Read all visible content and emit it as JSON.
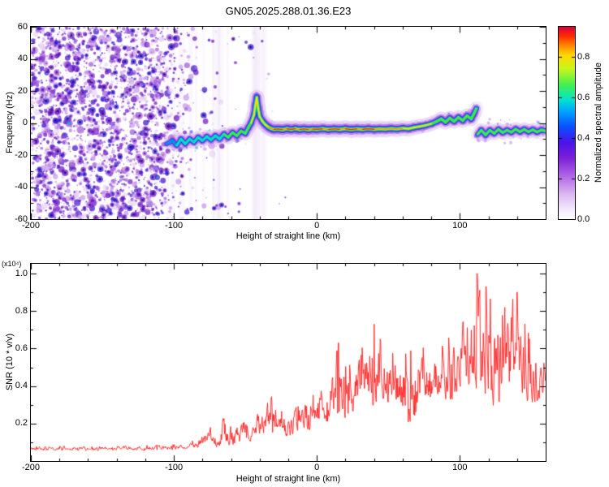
{
  "title": "GN05.2025.288.01.36.E23",
  "colors": {
    "background": "#ffffff",
    "axis": "#000000",
    "snr_line": "#ff2020"
  },
  "chart_data": [
    {
      "type": "heatmap",
      "title": "GN05.2025.288.01.36.E23",
      "xlabel": "Height of straight line (km)",
      "ylabel": "Frequency (Hz)",
      "xlim": [
        -200,
        160
      ],
      "ylim": [
        -60,
        60
      ],
      "x_ticks": [
        -200,
        -100,
        0,
        100
      ],
      "x_tick_labels": [
        "-200",
        "-100",
        "0",
        "100"
      ],
      "y_ticks": [
        -60,
        -40,
        -20,
        0,
        20,
        40,
        60
      ],
      "y_tick_labels": [
        "-60",
        "-40",
        "-20",
        "0",
        "20",
        "40",
        "60"
      ],
      "minor_tick": {
        "x": 20,
        "y": 10
      },
      "grid": false,
      "colorbar": {
        "label": "Normalized spectral amplitude",
        "ticks": [
          0,
          0.2,
          0.4,
          0.6,
          0.8
        ],
        "tick_labels": [
          "0.0",
          "0.2",
          "0.4",
          "0.6",
          "0.8"
        ],
        "max": 0.95,
        "stops": [
          [
            0.0,
            "#ffffff"
          ],
          [
            0.05,
            "#f4eafb"
          ],
          [
            0.13,
            "#dcb8f1"
          ],
          [
            0.22,
            "#b36ae6"
          ],
          [
            0.32,
            "#7b1fd8"
          ],
          [
            0.4,
            "#4a14e8"
          ],
          [
            0.48,
            "#0b50ff"
          ],
          [
            0.56,
            "#00a4ff"
          ],
          [
            0.62,
            "#00e4d0"
          ],
          [
            0.7,
            "#45f04f"
          ],
          [
            0.78,
            "#c8f520"
          ],
          [
            0.85,
            "#ffd900"
          ],
          [
            0.9,
            "#ff8c00"
          ],
          [
            0.95,
            "#ff2d00"
          ],
          [
            1.0,
            "#d80043"
          ]
        ]
      },
      "noise_region": {
        "x_range": [
          -200,
          -50
        ],
        "dense_until_km": -105,
        "description": "dense purple speckle noise at low heights, fading out toward -50 km"
      },
      "trace": {
        "x": [
          -105,
          -101,
          -98,
          -95,
          -92,
          -89,
          -86,
          -83,
          -80,
          -77,
          -74,
          -71,
          -68,
          -65,
          -62,
          -59,
          -56,
          -53,
          -50,
          -48,
          -46,
          -44,
          -43,
          -42,
          -41,
          -40,
          -38,
          -36,
          -34,
          -32,
          -30,
          -27,
          -24,
          -21,
          -18,
          -15,
          -12,
          -9,
          -6,
          -3,
          0,
          4,
          8,
          12,
          16,
          20,
          24,
          28,
          32,
          36,
          40,
          44,
          48,
          52,
          56,
          60,
          64,
          68,
          72,
          76,
          80,
          84,
          87,
          90,
          93,
          96,
          99,
          102,
          105,
          108,
          110,
          111.5,
          112.5,
          115,
          118,
          121,
          124,
          127,
          130,
          133,
          136,
          139,
          142,
          145,
          148,
          151,
          154,
          157,
          160
        ],
        "freq_hz": [
          -13,
          -11,
          -14,
          -10,
          -13,
          -10,
          -12,
          -9,
          -11,
          -8.5,
          -10.5,
          -8,
          -10,
          -7,
          -9,
          -6,
          -8,
          -5,
          -6.5,
          -3,
          0,
          5,
          11,
          16,
          9,
          4,
          1,
          -1,
          -2.5,
          -3.5,
          -4,
          -3.8,
          -4.2,
          -3.6,
          -4,
          -3.6,
          -4.1,
          -3.7,
          -4.2,
          -3.8,
          -4,
          -3.6,
          -4.1,
          -3.7,
          -4,
          -3.6,
          -4.1,
          -3.7,
          -4,
          -3.6,
          -4,
          -3.7,
          -3.9,
          -3.5,
          -3.8,
          -3.3,
          -3.6,
          -2.8,
          -2.2,
          -1.5,
          -0.5,
          1,
          2.5,
          0.5,
          3,
          1,
          3.5,
          1.5,
          4.5,
          2.5,
          6,
          9,
          -7,
          -4.5,
          -7.5,
          -4.5,
          -6.5,
          -4,
          -6,
          -4.5,
          -5.8,
          -3.8,
          -5.5,
          -4,
          -5.5,
          -4.2,
          -5.6,
          -4.4,
          -5
        ],
        "amplitude": [
          0.5,
          0.55,
          0.5,
          0.6,
          0.55,
          0.6,
          0.55,
          0.6,
          0.6,
          0.62,
          0.6,
          0.62,
          0.6,
          0.65,
          0.62,
          0.65,
          0.62,
          0.68,
          0.65,
          0.7,
          0.72,
          0.75,
          0.75,
          0.78,
          0.76,
          0.8,
          0.78,
          0.8,
          0.82,
          0.85,
          0.88,
          0.9,
          0.92,
          0.92,
          0.92,
          0.9,
          0.92,
          0.92,
          0.9,
          0.92,
          0.92,
          0.9,
          0.92,
          0.9,
          0.92,
          0.92,
          0.9,
          0.92,
          0.9,
          0.88,
          0.9,
          0.88,
          0.86,
          0.85,
          0.84,
          0.82,
          0.8,
          0.78,
          0.76,
          0.74,
          0.72,
          0.72,
          0.7,
          0.7,
          0.72,
          0.7,
          0.72,
          0.7,
          0.72,
          0.7,
          0.72,
          0.7,
          0.62,
          0.65,
          0.62,
          0.66,
          0.63,
          0.66,
          0.64,
          0.67,
          0.64,
          0.66,
          0.65,
          0.67,
          0.64,
          0.66,
          0.64,
          0.66,
          0.65
        ]
      }
    },
    {
      "type": "line",
      "series_color": "#ff2020",
      "xlabel": "Height of straight line (km)",
      "ylabel": "SNR (10 * v/v)",
      "y_scale_label": "(x10⁴)",
      "xlim": [
        -200,
        160
      ],
      "ylim": [
        0,
        1.052
      ],
      "x_ticks": [
        -200,
        -100,
        0,
        100
      ],
      "x_tick_labels": [
        "-200",
        "-100",
        "0",
        "100"
      ],
      "y_ticks": [
        0.2,
        0.4,
        0.6,
        0.8,
        1.0
      ],
      "y_tick_labels": [
        "0.2",
        "0.4",
        "0.6",
        "0.8",
        "1.0"
      ],
      "minor_tick": {
        "x": 20,
        "y": 0.1
      },
      "envelope": {
        "description": "noisy SNR curve; value fluctuates between lo and hi envelopes",
        "x": [
          -200,
          -150,
          -120,
          -100,
          -90,
          -80,
          -75,
          -70,
          -65,
          -60,
          -55,
          -50,
          -45,
          -40,
          -35,
          -30,
          -25,
          -20,
          -15,
          -10,
          -5,
          0,
          5,
          10,
          15,
          20,
          25,
          30,
          35,
          40,
          45,
          50,
          55,
          60,
          65,
          70,
          75,
          80,
          85,
          90,
          95,
          100,
          105,
          110,
          115,
          120,
          125,
          130,
          135,
          140,
          145,
          150,
          155,
          160
        ],
        "lo": [
          0.055,
          0.055,
          0.055,
          0.06,
          0.06,
          0.07,
          0.08,
          0.07,
          0.08,
          0.08,
          0.09,
          0.1,
          0.1,
          0.12,
          0.12,
          0.14,
          0.12,
          0.1,
          0.12,
          0.14,
          0.16,
          0.18,
          0.18,
          0.2,
          0.22,
          0.22,
          0.25,
          0.25,
          0.28,
          0.25,
          0.3,
          0.3,
          0.28,
          0.2,
          0.18,
          0.25,
          0.3,
          0.3,
          0.28,
          0.3,
          0.32,
          0.3,
          0.35,
          0.3,
          0.25,
          0.3,
          0.25,
          0.35,
          0.4,
          0.35,
          0.3,
          0.28,
          0.3,
          0.3
        ],
        "hi": [
          0.08,
          0.08,
          0.085,
          0.09,
          0.1,
          0.13,
          0.2,
          0.15,
          0.28,
          0.18,
          0.22,
          0.26,
          0.22,
          0.3,
          0.34,
          0.37,
          0.28,
          0.24,
          0.3,
          0.34,
          0.4,
          0.48,
          0.42,
          0.5,
          0.65,
          0.55,
          0.55,
          0.6,
          0.65,
          0.73,
          0.65,
          0.62,
          0.6,
          0.58,
          0.6,
          0.62,
          0.65,
          0.63,
          0.62,
          0.65,
          0.68,
          0.8,
          0.9,
          1.02,
          0.95,
          0.97,
          0.85,
          0.8,
          0.93,
          0.9,
          0.75,
          0.65,
          0.6,
          0.5
        ]
      },
      "peaks": {
        "x": [
          15,
          40,
          112,
          118.5,
          140
        ],
        "snr": [
          0.63,
          0.73,
          1.0,
          0.93,
          0.9
        ]
      }
    }
  ]
}
